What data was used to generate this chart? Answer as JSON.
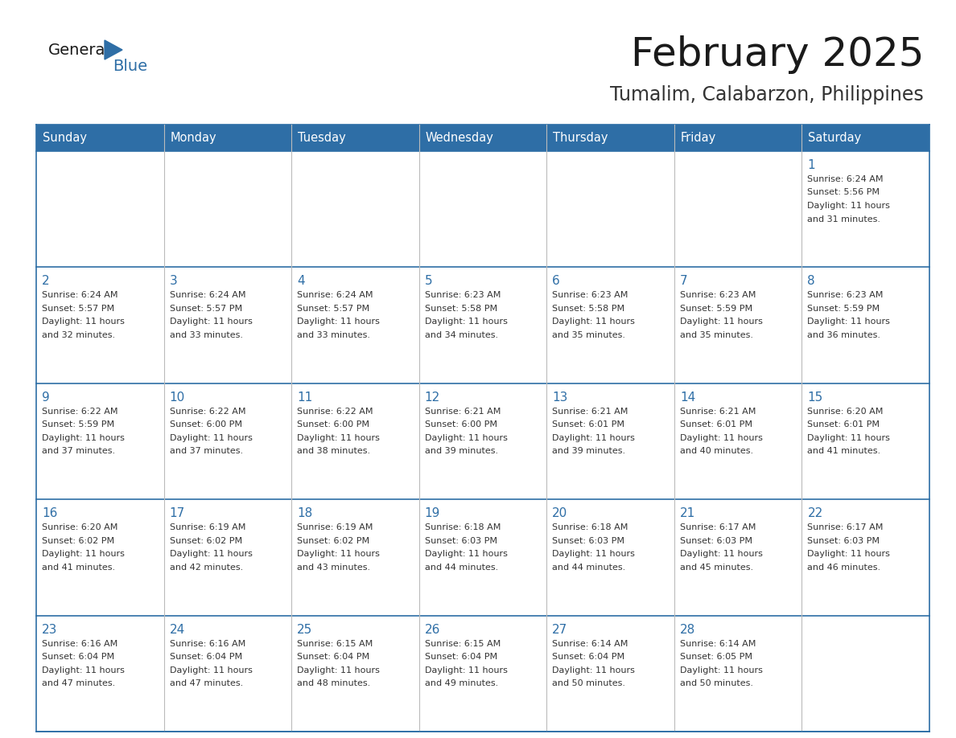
{
  "title": "February 2025",
  "subtitle": "Tumalim, Calabarzon, Philippines",
  "header_bg": "#2E6EA6",
  "header_text": "#FFFFFF",
  "weekdays": [
    "Sunday",
    "Monday",
    "Tuesday",
    "Wednesday",
    "Thursday",
    "Friday",
    "Saturday"
  ],
  "row_bg": "#FFFFFF",
  "cell_text_color": "#333333",
  "day_num_color": "#2E6EA6",
  "grid_line_color": "#2E6EA6",
  "grid_line_light": "#BBBBBB",
  "background_color": "#FFFFFF",
  "calendar": [
    [
      {
        "day": null
      },
      {
        "day": null
      },
      {
        "day": null
      },
      {
        "day": null
      },
      {
        "day": null
      },
      {
        "day": null
      },
      {
        "day": 1,
        "sunrise": "6:24 AM",
        "sunset": "5:56 PM",
        "daylight": "11 hours and 31 minutes."
      }
    ],
    [
      {
        "day": 2,
        "sunrise": "6:24 AM",
        "sunset": "5:57 PM",
        "daylight": "11 hours and 32 minutes."
      },
      {
        "day": 3,
        "sunrise": "6:24 AM",
        "sunset": "5:57 PM",
        "daylight": "11 hours and 33 minutes."
      },
      {
        "day": 4,
        "sunrise": "6:24 AM",
        "sunset": "5:57 PM",
        "daylight": "11 hours and 33 minutes."
      },
      {
        "day": 5,
        "sunrise": "6:23 AM",
        "sunset": "5:58 PM",
        "daylight": "11 hours and 34 minutes."
      },
      {
        "day": 6,
        "sunrise": "6:23 AM",
        "sunset": "5:58 PM",
        "daylight": "11 hours and 35 minutes."
      },
      {
        "day": 7,
        "sunrise": "6:23 AM",
        "sunset": "5:59 PM",
        "daylight": "11 hours and 35 minutes."
      },
      {
        "day": 8,
        "sunrise": "6:23 AM",
        "sunset": "5:59 PM",
        "daylight": "11 hours and 36 minutes."
      }
    ],
    [
      {
        "day": 9,
        "sunrise": "6:22 AM",
        "sunset": "5:59 PM",
        "daylight": "11 hours and 37 minutes."
      },
      {
        "day": 10,
        "sunrise": "6:22 AM",
        "sunset": "6:00 PM",
        "daylight": "11 hours and 37 minutes."
      },
      {
        "day": 11,
        "sunrise": "6:22 AM",
        "sunset": "6:00 PM",
        "daylight": "11 hours and 38 minutes."
      },
      {
        "day": 12,
        "sunrise": "6:21 AM",
        "sunset": "6:00 PM",
        "daylight": "11 hours and 39 minutes."
      },
      {
        "day": 13,
        "sunrise": "6:21 AM",
        "sunset": "6:01 PM",
        "daylight": "11 hours and 39 minutes."
      },
      {
        "day": 14,
        "sunrise": "6:21 AM",
        "sunset": "6:01 PM",
        "daylight": "11 hours and 40 minutes."
      },
      {
        "day": 15,
        "sunrise": "6:20 AM",
        "sunset": "6:01 PM",
        "daylight": "11 hours and 41 minutes."
      }
    ],
    [
      {
        "day": 16,
        "sunrise": "6:20 AM",
        "sunset": "6:02 PM",
        "daylight": "11 hours and 41 minutes."
      },
      {
        "day": 17,
        "sunrise": "6:19 AM",
        "sunset": "6:02 PM",
        "daylight": "11 hours and 42 minutes."
      },
      {
        "day": 18,
        "sunrise": "6:19 AM",
        "sunset": "6:02 PM",
        "daylight": "11 hours and 43 minutes."
      },
      {
        "day": 19,
        "sunrise": "6:18 AM",
        "sunset": "6:03 PM",
        "daylight": "11 hours and 44 minutes."
      },
      {
        "day": 20,
        "sunrise": "6:18 AM",
        "sunset": "6:03 PM",
        "daylight": "11 hours and 44 minutes."
      },
      {
        "day": 21,
        "sunrise": "6:17 AM",
        "sunset": "6:03 PM",
        "daylight": "11 hours and 45 minutes."
      },
      {
        "day": 22,
        "sunrise": "6:17 AM",
        "sunset": "6:03 PM",
        "daylight": "11 hours and 46 minutes."
      }
    ],
    [
      {
        "day": 23,
        "sunrise": "6:16 AM",
        "sunset": "6:04 PM",
        "daylight": "11 hours and 47 minutes."
      },
      {
        "day": 24,
        "sunrise": "6:16 AM",
        "sunset": "6:04 PM",
        "daylight": "11 hours and 47 minutes."
      },
      {
        "day": 25,
        "sunrise": "6:15 AM",
        "sunset": "6:04 PM",
        "daylight": "11 hours and 48 minutes."
      },
      {
        "day": 26,
        "sunrise": "6:15 AM",
        "sunset": "6:04 PM",
        "daylight": "11 hours and 49 minutes."
      },
      {
        "day": 27,
        "sunrise": "6:14 AM",
        "sunset": "6:04 PM",
        "daylight": "11 hours and 50 minutes."
      },
      {
        "day": 28,
        "sunrise": "6:14 AM",
        "sunset": "6:05 PM",
        "daylight": "11 hours and 50 minutes."
      },
      {
        "day": null
      }
    ]
  ],
  "logo_general_color": "#1A1A1A",
  "logo_blue_color": "#2E6EA6",
  "logo_triangle_color": "#2E6EA6"
}
